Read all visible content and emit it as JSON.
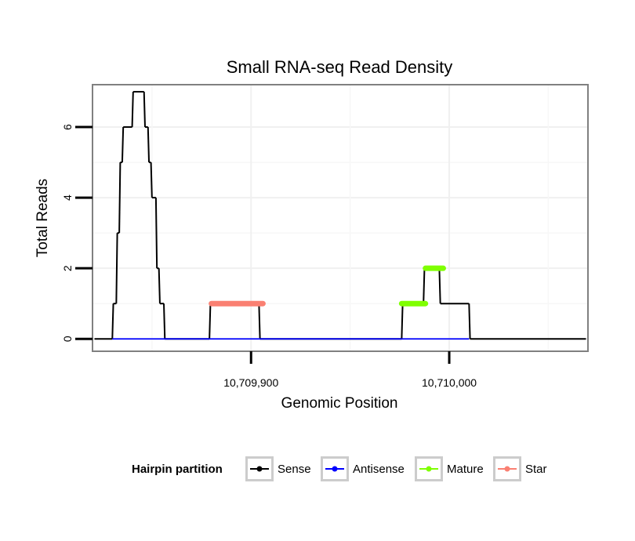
{
  "chart_data": {
    "type": "line",
    "title": "Small RNA-seq Read Density",
    "xlabel": "Genomic Position",
    "ylabel": "Total Reads",
    "xlim": [
      10709820,
      10710070
    ],
    "ylim": [
      -0.35,
      7.2
    ],
    "x_ticks": [
      {
        "value": 10709900,
        "label": "10,709,900"
      },
      {
        "value": 10710000,
        "label": "10,710,000"
      }
    ],
    "y_ticks": [
      {
        "value": 0,
        "label": "0"
      },
      {
        "value": 2,
        "label": "2"
      },
      {
        "value": 4,
        "label": "4"
      },
      {
        "value": 6,
        "label": "6"
      }
    ],
    "legend": {
      "title": "Hairpin partition",
      "position": "bottom",
      "entries": [
        {
          "name": "Sense",
          "color": "#000000"
        },
        {
          "name": "Antisense",
          "color": "#0000ff"
        },
        {
          "name": "Mature",
          "color": "#7fff00"
        },
        {
          "name": "Star",
          "color": "#fa8072"
        }
      ]
    },
    "series": [
      {
        "name": "Sense",
        "color": "#000000",
        "style": "step-line",
        "points": [
          [
            10709821,
            0
          ],
          [
            10709830,
            0
          ],
          [
            10709830.5,
            1
          ],
          [
            10709832,
            1
          ],
          [
            10709832.5,
            3
          ],
          [
            10709833.5,
            3
          ],
          [
            10709834,
            5
          ],
          [
            10709835,
            5
          ],
          [
            10709835.5,
            6
          ],
          [
            10709840,
            6
          ],
          [
            10709840.5,
            7
          ],
          [
            10709846,
            7
          ],
          [
            10709846.5,
            6
          ],
          [
            10709848,
            6
          ],
          [
            10709848.5,
            5
          ],
          [
            10709849.5,
            5
          ],
          [
            10709850,
            4
          ],
          [
            10709852,
            4
          ],
          [
            10709852.5,
            2
          ],
          [
            10709853.5,
            2
          ],
          [
            10709854,
            1
          ],
          [
            10709856,
            1
          ],
          [
            10709856.5,
            0
          ],
          [
            10709879,
            0
          ],
          [
            10709879.5,
            1
          ],
          [
            10709904,
            1
          ],
          [
            10709904.5,
            0
          ],
          [
            10709976,
            0
          ],
          [
            10709976.5,
            1
          ],
          [
            10709987,
            1
          ],
          [
            10709987.5,
            2
          ],
          [
            10709995,
            2
          ],
          [
            10709995.5,
            1
          ],
          [
            10710010,
            1
          ],
          [
            10710010.5,
            0
          ],
          [
            10710069,
            0
          ]
        ]
      },
      {
        "name": "Antisense",
        "color": "#0000ff",
        "style": "line",
        "points": [
          [
            10709830,
            0
          ],
          [
            10709856,
            0
          ],
          [
            10709879,
            0
          ],
          [
            10709904,
            0
          ],
          [
            10709976,
            0
          ],
          [
            10710010,
            0
          ]
        ]
      },
      {
        "name": "Mature",
        "color": "#7fff00",
        "style": "thick-segment",
        "segments": [
          [
            10709976,
            10709988,
            1
          ],
          [
            10709988,
            10709997,
            2
          ]
        ]
      },
      {
        "name": "Star",
        "color": "#fa8072",
        "style": "thick-segment",
        "segments": [
          [
            10709880,
            10709906,
            1
          ]
        ]
      }
    ]
  }
}
